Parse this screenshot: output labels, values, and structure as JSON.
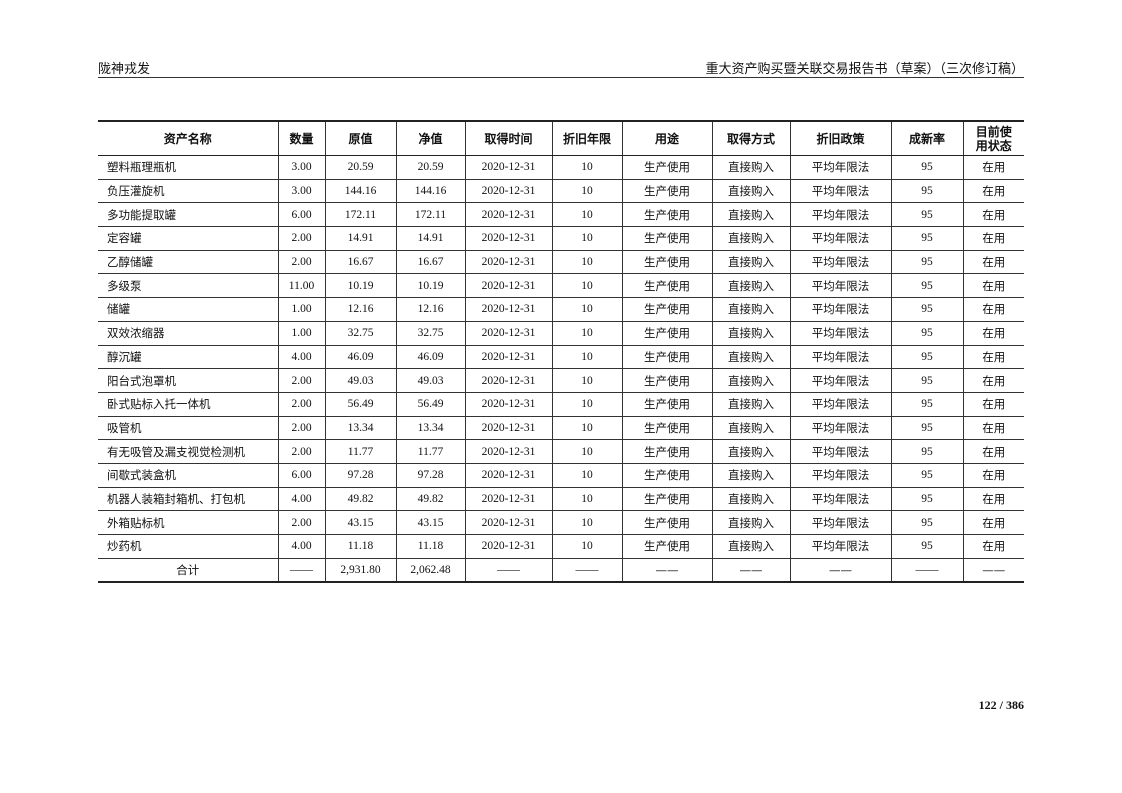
{
  "header": {
    "company": "陇神戎发",
    "doc_title": "重大资产购买暨关联交易报告书（草案）（三次修订稿）"
  },
  "table": {
    "columns": [
      "资产名称",
      "数量",
      "原值",
      "净值",
      "取得时间",
      "折旧年限",
      "用途",
      "取得方式",
      "折旧政策",
      "成新率",
      "目前使用状态"
    ],
    "rows": [
      [
        "塑料瓶理瓶机",
        "3.00",
        "20.59",
        "20.59",
        "2020-12-31",
        "10",
        "生产使用",
        "直接购入",
        "平均年限法",
        "95",
        "在用"
      ],
      [
        "负压灌旋机",
        "3.00",
        "144.16",
        "144.16",
        "2020-12-31",
        "10",
        "生产使用",
        "直接购入",
        "平均年限法",
        "95",
        "在用"
      ],
      [
        "多功能提取罐",
        "6.00",
        "172.11",
        "172.11",
        "2020-12-31",
        "10",
        "生产使用",
        "直接购入",
        "平均年限法",
        "95",
        "在用"
      ],
      [
        "定容罐",
        "2.00",
        "14.91",
        "14.91",
        "2020-12-31",
        "10",
        "生产使用",
        "直接购入",
        "平均年限法",
        "95",
        "在用"
      ],
      [
        "乙醇储罐",
        "2.00",
        "16.67",
        "16.67",
        "2020-12-31",
        "10",
        "生产使用",
        "直接购入",
        "平均年限法",
        "95",
        "在用"
      ],
      [
        "多级泵",
        "11.00",
        "10.19",
        "10.19",
        "2020-12-31",
        "10",
        "生产使用",
        "直接购入",
        "平均年限法",
        "95",
        "在用"
      ],
      [
        "储罐",
        "1.00",
        "12.16",
        "12.16",
        "2020-12-31",
        "10",
        "生产使用",
        "直接购入",
        "平均年限法",
        "95",
        "在用"
      ],
      [
        "双效浓缩器",
        "1.00",
        "32.75",
        "32.75",
        "2020-12-31",
        "10",
        "生产使用",
        "直接购入",
        "平均年限法",
        "95",
        "在用"
      ],
      [
        "醇沉罐",
        "4.00",
        "46.09",
        "46.09",
        "2020-12-31",
        "10",
        "生产使用",
        "直接购入",
        "平均年限法",
        "95",
        "在用"
      ],
      [
        "阳台式泡罩机",
        "2.00",
        "49.03",
        "49.03",
        "2020-12-31",
        "10",
        "生产使用",
        "直接购入",
        "平均年限法",
        "95",
        "在用"
      ],
      [
        "卧式贴标入托一体机",
        "2.00",
        "56.49",
        "56.49",
        "2020-12-31",
        "10",
        "生产使用",
        "直接购入",
        "平均年限法",
        "95",
        "在用"
      ],
      [
        "吸管机",
        "2.00",
        "13.34",
        "13.34",
        "2020-12-31",
        "10",
        "生产使用",
        "直接购入",
        "平均年限法",
        "95",
        "在用"
      ],
      [
        "有无吸管及漏支视觉检测机",
        "2.00",
        "11.77",
        "11.77",
        "2020-12-31",
        "10",
        "生产使用",
        "直接购入",
        "平均年限法",
        "95",
        "在用"
      ],
      [
        "间歇式装盒机",
        "6.00",
        "97.28",
        "97.28",
        "2020-12-31",
        "10",
        "生产使用",
        "直接购入",
        "平均年限法",
        "95",
        "在用"
      ],
      [
        "机器人装箱封箱机、打包机",
        "4.00",
        "49.82",
        "49.82",
        "2020-12-31",
        "10",
        "生产使用",
        "直接购入",
        "平均年限法",
        "95",
        "在用"
      ],
      [
        "外箱贴标机",
        "2.00",
        "43.15",
        "43.15",
        "2020-12-31",
        "10",
        "生产使用",
        "直接购入",
        "平均年限法",
        "95",
        "在用"
      ],
      [
        "炒药机",
        "4.00",
        "11.18",
        "11.18",
        "2020-12-31",
        "10",
        "生产使用",
        "直接购入",
        "平均年限法",
        "95",
        "在用"
      ]
    ],
    "total": [
      "合计",
      "——",
      "2,931.80",
      "2,062.48",
      "——",
      "——",
      "——",
      "——",
      "——",
      "——",
      "——"
    ]
  },
  "footer": {
    "page": "122 / 386"
  }
}
